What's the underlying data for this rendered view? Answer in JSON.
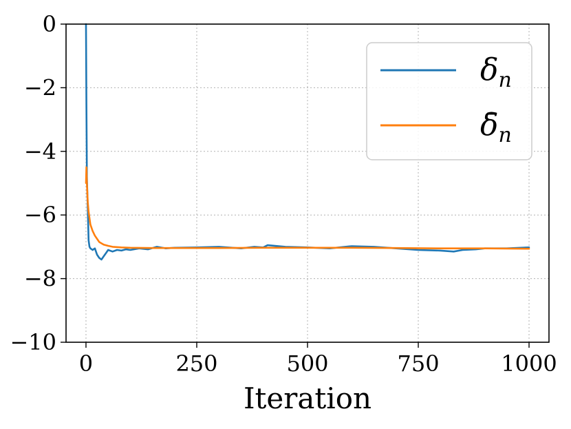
{
  "chart_data": {
    "type": "line",
    "title": "",
    "xlabel": "Iteration",
    "ylabel": "",
    "xlim": [
      -45,
      1045
    ],
    "ylim": [
      -10,
      0
    ],
    "x_ticks": [
      0,
      250,
      500,
      750,
      1000
    ],
    "x_tick_labels": [
      "0",
      "250",
      "500",
      "750",
      "1000"
    ],
    "y_ticks": [
      0,
      -2,
      -4,
      -6,
      -8,
      -10
    ],
    "y_tick_labels": [
      "0",
      "−2",
      "−4",
      "−6",
      "−8",
      "−10"
    ],
    "grid": true,
    "legend_position": "top-right",
    "legend": {
      "delta_n": {
        "base": "δ",
        "sub": "n"
      },
      "delta_bar_n": {
        "base": "δ̄",
        "sub": "n"
      }
    },
    "series": [
      {
        "key": "delta_n",
        "color": "#1f77b4",
        "x": [
          0,
          1,
          2,
          4,
          6,
          8,
          10,
          15,
          20,
          25,
          30,
          35,
          40,
          45,
          50,
          60,
          70,
          80,
          90,
          100,
          120,
          140,
          160,
          180,
          200,
          250,
          300,
          350,
          380,
          400,
          410,
          450,
          500,
          550,
          600,
          650,
          700,
          750,
          800,
          830,
          850,
          880,
          900,
          950,
          1000
        ],
        "y": [
          0,
          -2.5,
          -4.8,
          -5.8,
          -6.8,
          -7.0,
          -7.05,
          -7.1,
          -7.05,
          -7.25,
          -7.35,
          -7.4,
          -7.3,
          -7.2,
          -7.1,
          -7.15,
          -7.1,
          -7.12,
          -7.08,
          -7.1,
          -7.05,
          -7.08,
          -7.0,
          -7.05,
          -7.03,
          -7.02,
          -7.0,
          -7.05,
          -7.0,
          -7.02,
          -6.95,
          -7.0,
          -7.02,
          -7.05,
          -6.98,
          -7.0,
          -7.05,
          -7.1,
          -7.12,
          -7.15,
          -7.1,
          -7.08,
          -7.05,
          -7.05,
          -7.02
        ]
      },
      {
        "key": "delta_bar_n",
        "color": "#ff7f0e",
        "x": [
          0,
          1,
          2,
          4,
          6,
          8,
          10,
          15,
          20,
          25,
          30,
          40,
          50,
          60,
          80,
          100,
          150,
          200,
          300,
          400,
          500,
          600,
          700,
          800,
          900,
          1000
        ],
        "y": [
          -5.0,
          -4.5,
          -5.0,
          -5.6,
          -5.9,
          -6.1,
          -6.3,
          -6.5,
          -6.65,
          -6.75,
          -6.85,
          -6.93,
          -6.97,
          -7.0,
          -7.02,
          -7.03,
          -7.04,
          -7.04,
          -7.04,
          -7.03,
          -7.03,
          -7.03,
          -7.04,
          -7.05,
          -7.05,
          -7.06
        ]
      }
    ]
  }
}
